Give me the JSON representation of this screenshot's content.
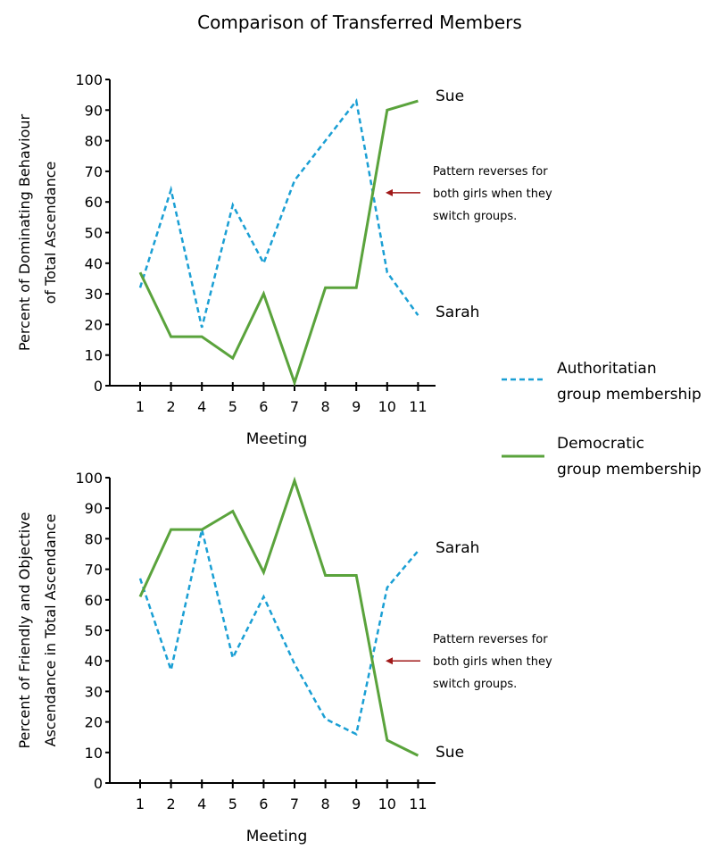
{
  "title": "Comparison of Transferred Members",
  "colors": {
    "authoritarian": "#1a9fd4",
    "democratic": "#5aa33c",
    "arrow": "#a01818"
  },
  "legend": {
    "placement": "right",
    "items": [
      {
        "series": "authoritarian",
        "style": "dashed",
        "line1": "Authoritatian",
        "line2": "group membership"
      },
      {
        "series": "democratic",
        "style": "solid",
        "line1": "Democratic",
        "line2": "group membership"
      }
    ]
  },
  "chart_data": [
    {
      "type": "line",
      "ylabel_line1": "Percent of Dominating Behaviour",
      "ylabel_line2": "of Total Ascendance",
      "xlabel": "Meeting",
      "categories": [
        "1",
        "2",
        "4",
        "5",
        "6",
        "7",
        "8",
        "9",
        "10",
        "11"
      ],
      "ylim": [
        0,
        100
      ],
      "yticks": [
        "0",
        "10",
        "20",
        "30",
        "40",
        "50",
        "60",
        "70",
        "80",
        "90",
        "100"
      ],
      "grid": false,
      "series": [
        {
          "key": "authoritarian",
          "style": "dashed",
          "values": [
            32,
            64,
            19,
            59,
            40,
            67,
            80,
            93,
            37,
            23
          ]
        },
        {
          "key": "democratic",
          "style": "solid",
          "values": [
            37,
            16,
            16,
            9,
            30,
            1,
            32,
            32,
            90,
            93
          ]
        }
      ],
      "end_labels": {
        "democratic": "Sue",
        "authoritarian": "Sarah"
      },
      "annotation": {
        "line1": "Pattern reverses for",
        "line2": "both girls when they",
        "line3": "switch groups.",
        "points_to": 63
      }
    },
    {
      "type": "line",
      "ylabel_line1": "Percent of Friendly and Objective",
      "ylabel_line2": "Ascendance in Total Ascendance",
      "xlabel": "Meeting",
      "categories": [
        "1",
        "2",
        "4",
        "5",
        "6",
        "7",
        "8",
        "9",
        "10",
        "11"
      ],
      "ylim": [
        0,
        100
      ],
      "yticks": [
        "0",
        "10",
        "20",
        "30",
        "40",
        "50",
        "60",
        "70",
        "80",
        "90",
        "100"
      ],
      "grid": false,
      "series": [
        {
          "key": "authoritarian",
          "style": "dashed",
          "values": [
            67,
            37,
            83,
            41,
            61,
            39,
            21,
            16,
            64,
            76
          ]
        },
        {
          "key": "democratic",
          "style": "solid",
          "values": [
            61,
            83,
            83,
            89,
            69,
            99,
            68,
            68,
            14,
            9
          ]
        }
      ],
      "end_labels": {
        "authoritarian": "Sarah",
        "democratic": "Sue"
      },
      "annotation": {
        "line1": "Pattern reverses for",
        "line2": "both girls when they",
        "line3": "switch groups.",
        "points_to": 40
      }
    }
  ]
}
